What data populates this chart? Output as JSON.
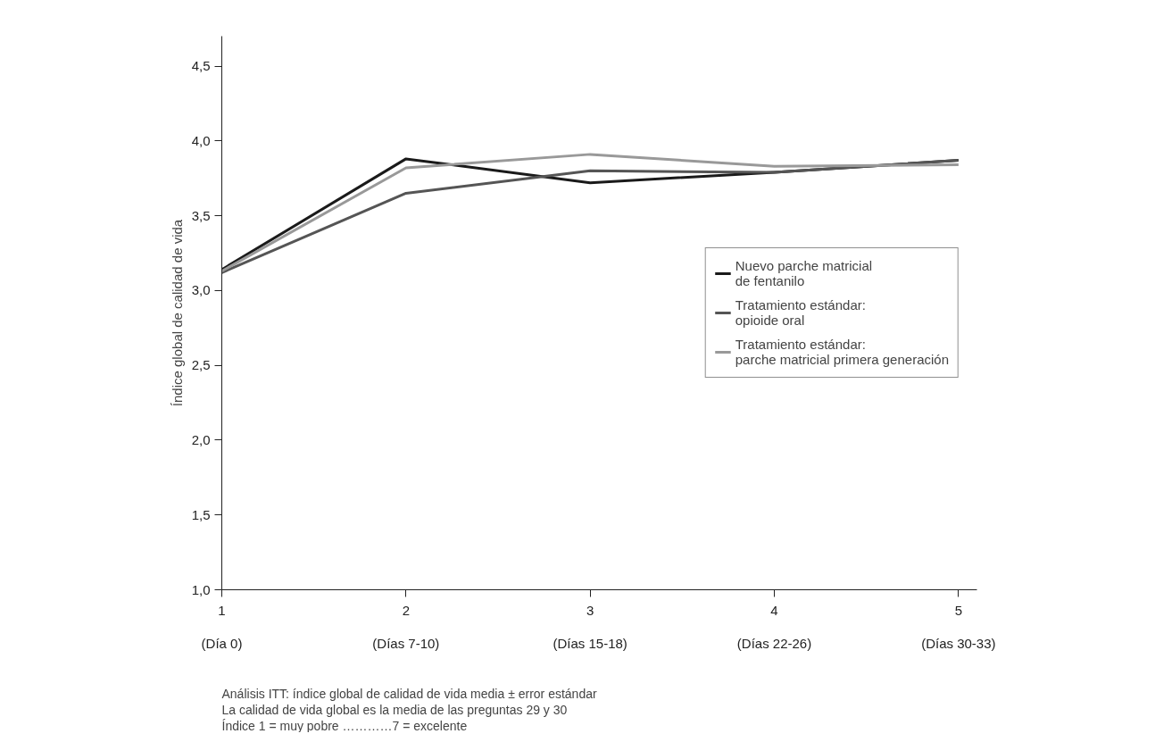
{
  "chart_data": {
    "type": "line",
    "x": [
      1,
      2,
      3,
      4,
      5
    ],
    "xlim": [
      1,
      5.1
    ],
    "xticks": [
      1,
      2,
      3,
      4,
      5
    ],
    "ylim": [
      1,
      4.7
    ],
    "yticks": [
      {
        "value": 1,
        "label": "1,0"
      },
      {
        "value": 1.5,
        "label": "1,5"
      },
      {
        "value": 2,
        "label": "2,0"
      },
      {
        "value": 2.5,
        "label": "2,5"
      },
      {
        "value": 3,
        "label": "3,0"
      },
      {
        "value": 3.5,
        "label": "3,5"
      },
      {
        "value": 4,
        "label": "4,0"
      },
      {
        "value": 4.5,
        "label": "4,5"
      }
    ],
    "ylabel": "Índice global de calidad de vida",
    "series": [
      {
        "name": "Nuevo parche matricial\nde fentanilo",
        "color": "#1a1a1a",
        "values": [
          3.14,
          3.88,
          3.72,
          3.79,
          3.87
        ]
      },
      {
        "name": "Tratamiento estándar:\nopioide oral",
        "color": "#555555",
        "values": [
          3.12,
          3.65,
          3.8,
          3.79,
          3.87
        ]
      },
      {
        "name": "Tratamiento estándar:\nparche matricial primera generación",
        "color": "#999999",
        "values": [
          3.13,
          3.82,
          3.91,
          3.83,
          3.84
        ]
      }
    ],
    "annotations": [
      "(Día 0)",
      "(Días 7-10)",
      "(Días 15-18)",
      "(Días 22-26)",
      "(Días 30-33)",
      "Análisis ITT: índice global de calidad de vida media ± error estándar",
      "La calidad de vida global es la media de las preguntas 29 y 30",
      "Índice 1 = muy pobre …………7 = excelente"
    ],
    "legend": "right",
    "grid": false,
    "marker": "none",
    "line_style": "solid"
  }
}
